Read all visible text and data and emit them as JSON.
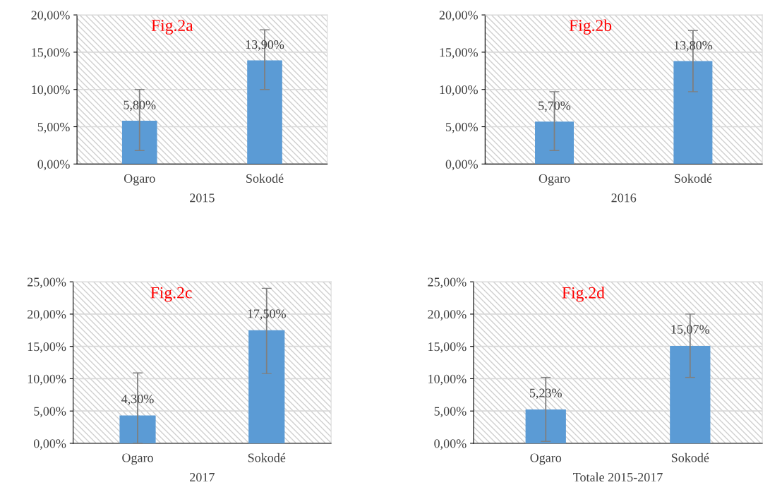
{
  "chart_data": [
    {
      "type": "bar",
      "title": "Fig.2a",
      "xlabel": "2015",
      "categories": [
        "Ogaro",
        "Sokodé"
      ],
      "values": [
        5.8,
        13.9
      ],
      "value_labels": [
        "5,80%",
        "13,90%"
      ],
      "errors": [
        [
          1.8,
          10.0
        ],
        [
          10.0,
          18.0
        ]
      ],
      "color": "#5b9bd5",
      "ylim": [
        0,
        20
      ],
      "yticks": [
        {
          "value": 0,
          "label": "0,00%"
        },
        {
          "value": 5,
          "label": "5,00%"
        },
        {
          "value": 10,
          "label": "10,00%"
        },
        {
          "value": 15,
          "label": "15,00%"
        },
        {
          "value": 20,
          "label": "20,00%"
        }
      ],
      "grid": "y"
    },
    {
      "type": "bar",
      "title": "Fig.2b",
      "xlabel": "2016",
      "categories": [
        "Ogaro",
        "Sokodé"
      ],
      "values": [
        5.7,
        13.8
      ],
      "value_labels": [
        "5,70%",
        "13,80%"
      ],
      "errors": [
        [
          1.8,
          9.7
        ],
        [
          9.7,
          17.9
        ]
      ],
      "color": "#5b9bd5",
      "ylim": [
        0,
        20
      ],
      "yticks": [
        {
          "value": 0,
          "label": "0,00%"
        },
        {
          "value": 5,
          "label": "5,00%"
        },
        {
          "value": 10,
          "label": "10,00%"
        },
        {
          "value": 15,
          "label": "15,00%"
        },
        {
          "value": 20,
          "label": "20,00%"
        }
      ],
      "grid": "y"
    },
    {
      "type": "bar",
      "title": "Fig.2c",
      "xlabel": "2017",
      "categories": [
        "Ogaro",
        "Sokodé"
      ],
      "values": [
        4.3,
        17.5
      ],
      "value_labels": [
        "4,30%",
        "17,50%"
      ],
      "errors": [
        [
          0,
          10.9
        ],
        [
          10.8,
          24.0
        ]
      ],
      "color": "#5b9bd5",
      "ylim": [
        0,
        25
      ],
      "yticks": [
        {
          "value": 0,
          "label": "0,00%"
        },
        {
          "value": 5,
          "label": "5,00%"
        },
        {
          "value": 10,
          "label": "10,00%"
        },
        {
          "value": 15,
          "label": "15,00%"
        },
        {
          "value": 20,
          "label": "20,00%"
        },
        {
          "value": 25,
          "label": "25,00%"
        }
      ],
      "grid": "y"
    },
    {
      "type": "bar",
      "title": "Fig.2d",
      "xlabel": "Totale 2015-2017",
      "categories": [
        "Ogaro",
        "Sokodé"
      ],
      "values": [
        5.23,
        15.07
      ],
      "value_labels": [
        "5,23%",
        "15,07%"
      ],
      "errors": [
        [
          0.3,
          10.2
        ],
        [
          10.2,
          20.0
        ]
      ],
      "color": "#5b9bd5",
      "ylim": [
        0,
        25
      ],
      "yticks": [
        {
          "value": 0,
          "label": "0,00%"
        },
        {
          "value": 5,
          "label": "5,00%"
        },
        {
          "value": 10,
          "label": "10,00%"
        },
        {
          "value": 15,
          "label": "15,00%"
        },
        {
          "value": 20,
          "label": "20,00%"
        },
        {
          "value": 25,
          "label": "25,00%"
        }
      ],
      "grid": "y"
    }
  ]
}
